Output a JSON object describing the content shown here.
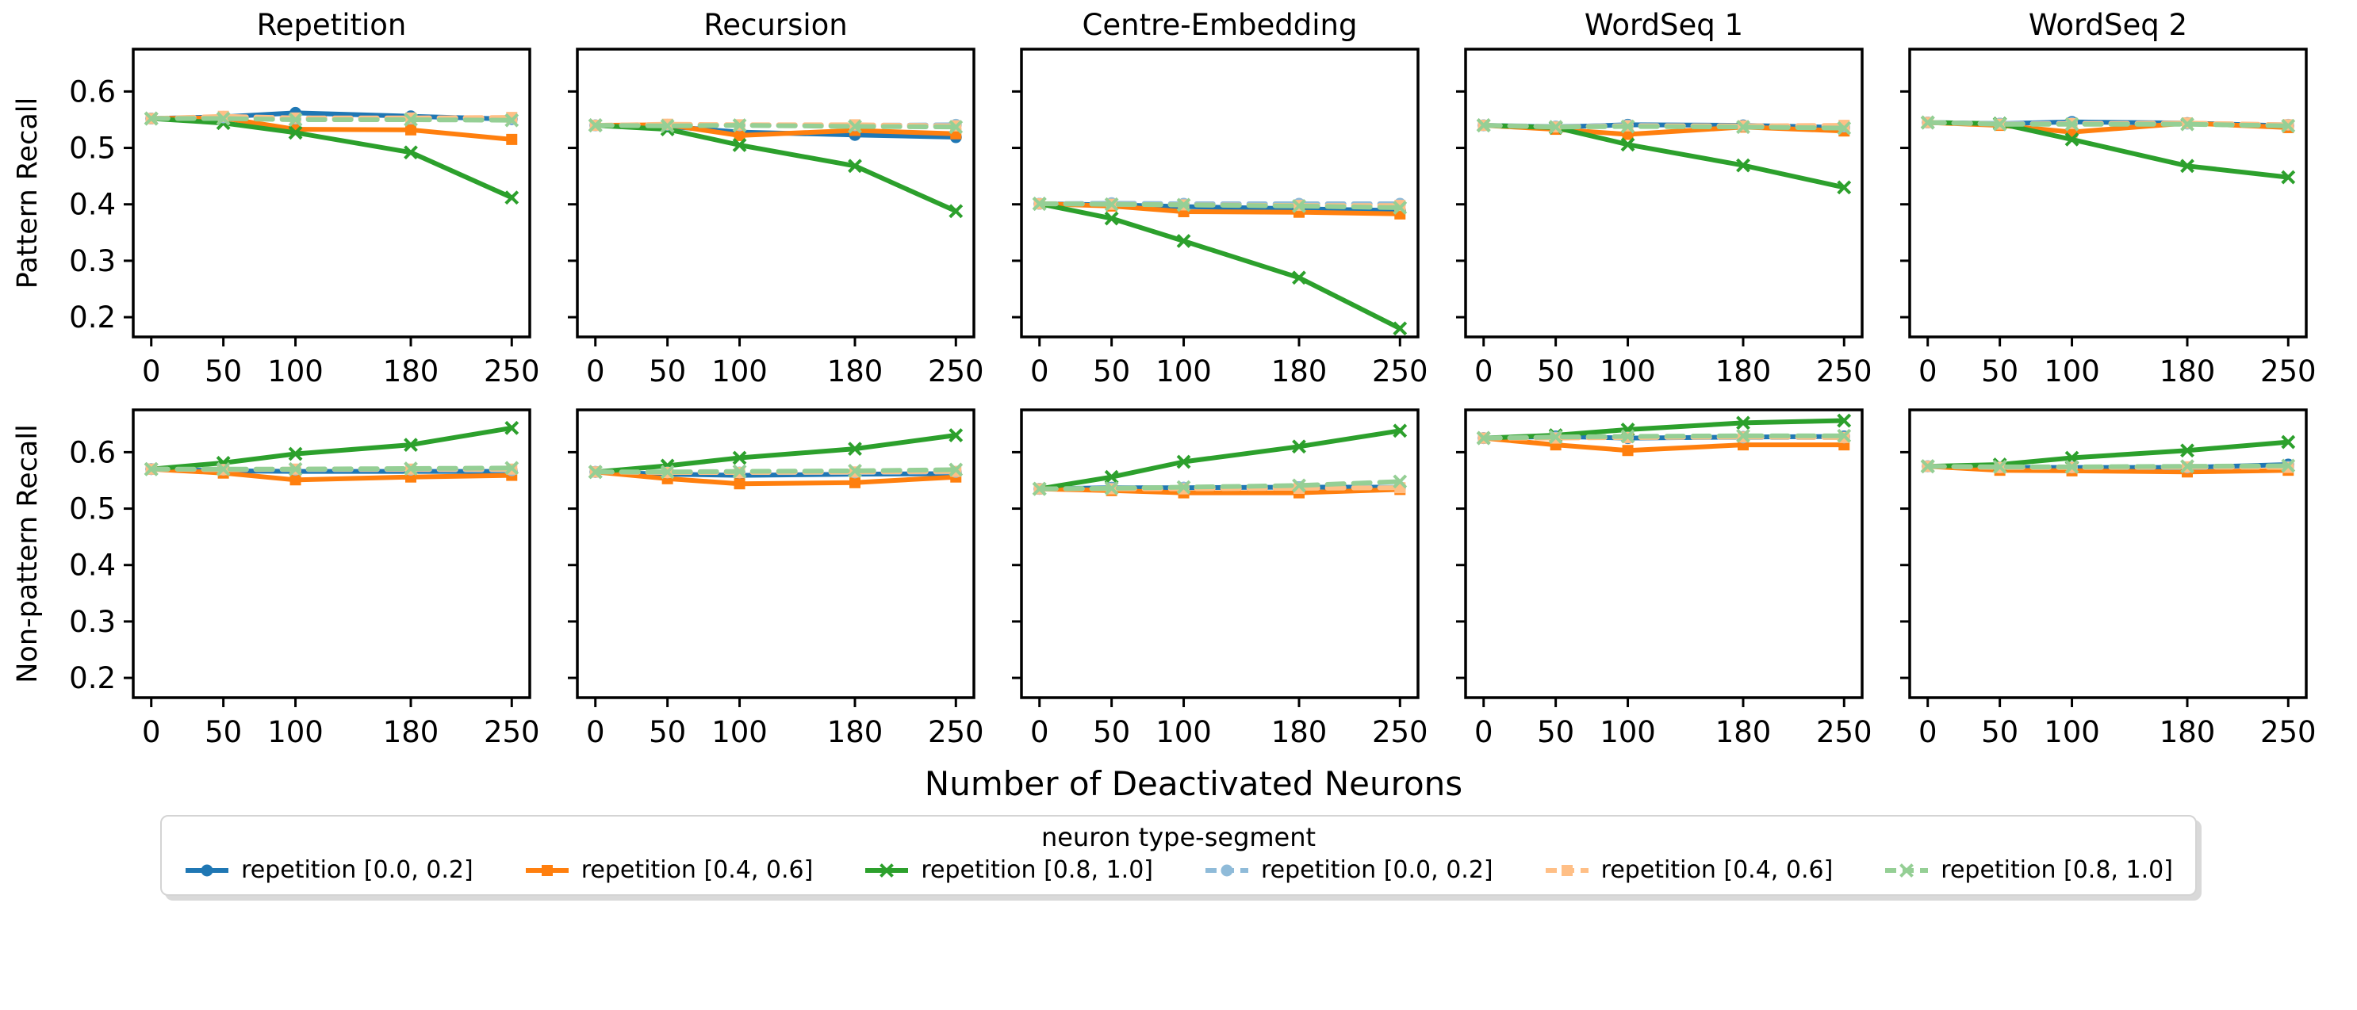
{
  "figure": {
    "background": "#ffffff",
    "text_color": "#000000",
    "spine_color": "#000000"
  },
  "chart_data": {
    "type": "line",
    "x": [
      0,
      50,
      100,
      180,
      250
    ],
    "xticks": [
      "0",
      "50",
      "100",
      "180",
      "250"
    ],
    "yticks": [
      "0.6",
      "0.5",
      "0.4",
      "0.3",
      "0.2"
    ],
    "ytick_values": [
      0.6,
      0.5,
      0.4,
      0.3,
      0.2
    ],
    "xlim": [
      -12.5,
      262.5
    ],
    "ylim": [
      0.165,
      0.675
    ],
    "grid": false,
    "legend_position": "bottom",
    "xlabel": "Number of Deactivated Neurons",
    "legend_title": "neuron type-segment",
    "series": [
      {
        "name": "repetition [0.0, 0.2]",
        "color": "#1f77b4",
        "style": "solid",
        "marker": "circle"
      },
      {
        "name": "repetition [0.4, 0.6]",
        "color": "#ff7f0e",
        "style": "solid",
        "marker": "square"
      },
      {
        "name": "repetition [0.8, 1.0]",
        "color": "#2ca02c",
        "style": "solid",
        "marker": "x"
      },
      {
        "name": "repetition [0.0, 0.2]",
        "color": "#8fbbd9",
        "style": "dashed",
        "marker": "circle"
      },
      {
        "name": "repetition [0.4, 0.6]",
        "color": "#ffbf86",
        "style": "dashed",
        "marker": "square"
      },
      {
        "name": "repetition [0.8, 1.0]",
        "color": "#95cf95",
        "style": "dashed",
        "marker": "x"
      }
    ],
    "rows": [
      {
        "ylabel": "Pattern Recall",
        "panels": [
          {
            "title": "Repetition",
            "values": [
              [
                0.552,
                0.555,
                0.562,
                0.556,
                0.551
              ],
              [
                0.552,
                0.553,
                0.533,
                0.532,
                0.515
              ],
              [
                0.552,
                0.544,
                0.527,
                0.492,
                0.412
              ],
              [
                0.552,
                0.554,
                0.552,
                0.552,
                0.552
              ],
              [
                0.552,
                0.556,
                0.553,
                0.553,
                0.554
              ],
              [
                0.552,
                0.552,
                0.55,
                0.55,
                0.549
              ]
            ]
          },
          {
            "title": "Recursion",
            "values": [
              [
                0.54,
                0.538,
                0.528,
                0.523,
                0.519
              ],
              [
                0.54,
                0.541,
                0.522,
                0.531,
                0.525
              ],
              [
                0.54,
                0.533,
                0.505,
                0.468,
                0.388
              ],
              [
                0.54,
                0.541,
                0.54,
                0.54,
                0.541
              ],
              [
                0.54,
                0.542,
                0.541,
                0.541,
                0.539
              ],
              [
                0.54,
                0.539,
                0.54,
                0.538,
                0.537
              ]
            ]
          },
          {
            "title": "Centre-Embedding",
            "values": [
              [
                0.401,
                0.399,
                0.396,
                0.392,
                0.389
              ],
              [
                0.401,
                0.397,
                0.387,
                0.386,
                0.383
              ],
              [
                0.401,
                0.375,
                0.335,
                0.27,
                0.18
              ],
              [
                0.401,
                0.402,
                0.401,
                0.401,
                0.401
              ],
              [
                0.401,
                0.4,
                0.399,
                0.398,
                0.398
              ],
              [
                0.401,
                0.4,
                0.399,
                0.397,
                0.394
              ]
            ]
          },
          {
            "title": "WordSeq 1",
            "values": [
              [
                0.54,
                0.537,
                0.541,
                0.54,
                0.536
              ],
              [
                0.54,
                0.533,
                0.524,
                0.537,
                0.53
              ],
              [
                0.54,
                0.536,
                0.506,
                0.469,
                0.43
              ],
              [
                0.54,
                0.538,
                0.54,
                0.539,
                0.538
              ],
              [
                0.54,
                0.537,
                0.539,
                0.539,
                0.54
              ],
              [
                0.54,
                0.537,
                0.538,
                0.537,
                0.535
              ]
            ]
          },
          {
            "title": "WordSeq 2",
            "values": [
              [
                0.545,
                0.543,
                0.546,
                0.544,
                0.539
              ],
              [
                0.545,
                0.54,
                0.528,
                0.544,
                0.536
              ],
              [
                0.545,
                0.543,
                0.515,
                0.468,
                0.448
              ],
              [
                0.545,
                0.543,
                0.544,
                0.543,
                0.541
              ],
              [
                0.545,
                0.542,
                0.543,
                0.544,
                0.541
              ],
              [
                0.545,
                0.542,
                0.542,
                0.542,
                0.539
              ]
            ]
          }
        ]
      },
      {
        "ylabel": "Non-pattern Recall",
        "panels": [
          {
            "title": "",
            "values": [
              [
                0.57,
                0.567,
                0.566,
                0.566,
                0.566
              ],
              [
                0.57,
                0.563,
                0.551,
                0.556,
                0.559
              ],
              [
                0.57,
                0.581,
                0.597,
                0.613,
                0.643
              ],
              [
                0.57,
                0.569,
                0.569,
                0.569,
                0.568
              ],
              [
                0.57,
                0.569,
                0.57,
                0.57,
                0.57
              ],
              [
                0.57,
                0.57,
                0.57,
                0.571,
                0.572
              ]
            ]
          },
          {
            "title": "",
            "values": [
              [
                0.565,
                0.561,
                0.559,
                0.561,
                0.562
              ],
              [
                0.565,
                0.553,
                0.544,
                0.546,
                0.556
              ],
              [
                0.565,
                0.576,
                0.59,
                0.606,
                0.63
              ],
              [
                0.565,
                0.564,
                0.564,
                0.564,
                0.565
              ],
              [
                0.565,
                0.564,
                0.564,
                0.565,
                0.566
              ],
              [
                0.565,
                0.565,
                0.566,
                0.567,
                0.569
              ]
            ]
          },
          {
            "title": "",
            "values": [
              [
                0.535,
                0.537,
                0.537,
                0.538,
                0.538
              ],
              [
                0.535,
                0.532,
                0.528,
                0.528,
                0.534
              ],
              [
                0.535,
                0.556,
                0.583,
                0.61,
                0.638
              ],
              [
                0.535,
                0.536,
                0.537,
                0.538,
                0.538
              ],
              [
                0.535,
                0.535,
                0.535,
                0.536,
                0.537
              ],
              [
                0.535,
                0.536,
                0.538,
                0.541,
                0.548
              ]
            ]
          },
          {
            "title": "",
            "values": [
              [
                0.625,
                0.628,
                0.625,
                0.627,
                0.628
              ],
              [
                0.625,
                0.613,
                0.603,
                0.613,
                0.613
              ],
              [
                0.625,
                0.63,
                0.64,
                0.652,
                0.656
              ],
              [
                0.625,
                0.626,
                0.626,
                0.626,
                0.626
              ],
              [
                0.625,
                0.625,
                0.626,
                0.627,
                0.626
              ],
              [
                0.625,
                0.627,
                0.628,
                0.629,
                0.629
              ]
            ]
          },
          {
            "title": "",
            "values": [
              [
                0.575,
                0.573,
                0.573,
                0.573,
                0.578
              ],
              [
                0.575,
                0.568,
                0.567,
                0.565,
                0.568
              ],
              [
                0.575,
                0.578,
                0.59,
                0.603,
                0.618
              ],
              [
                0.575,
                0.573,
                0.573,
                0.573,
                0.574
              ],
              [
                0.575,
                0.573,
                0.573,
                0.574,
                0.573
              ],
              [
                0.575,
                0.574,
                0.574,
                0.575,
                0.576
              ]
            ]
          }
        ]
      }
    ]
  }
}
